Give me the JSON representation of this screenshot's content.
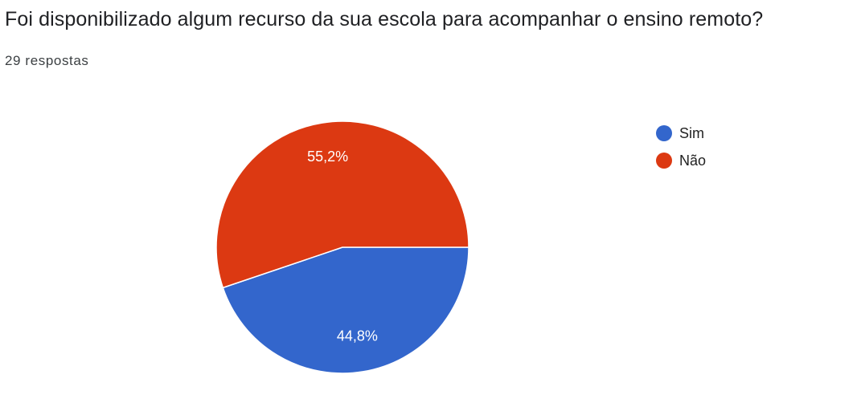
{
  "question": {
    "title": "Foi disponibilizado algum recurso da sua escola para acompanhar o ensino remoto?",
    "response_count": "29 respostas"
  },
  "chart_data": {
    "type": "pie",
    "categories": [
      "Sim",
      "Não"
    ],
    "values": [
      44.8,
      55.2
    ],
    "value_labels": [
      "44,8%",
      "55,2%"
    ],
    "colors": [
      "#3366cc",
      "#dc3912"
    ],
    "start_angle_deg": 90,
    "direction": "clockwise",
    "legend_position": "right"
  }
}
